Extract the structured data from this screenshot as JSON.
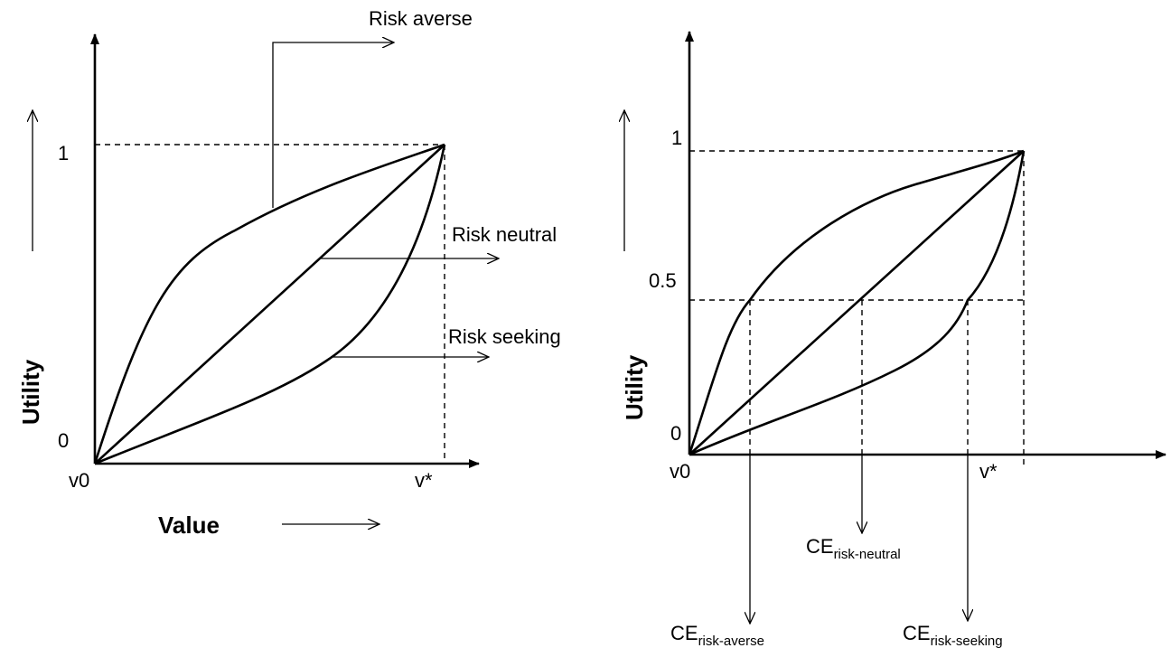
{
  "left_panel": {
    "y_axis_title": "Utility",
    "x_axis_title": "Value",
    "tick_y_top": "1",
    "tick_y_bottom": "0",
    "tick_x_origin": "v0",
    "tick_x_end": "v*",
    "curve_labels": {
      "risk_averse": "Risk averse",
      "risk_neutral": "Risk neutral",
      "risk_seeking": "Risk seeking"
    }
  },
  "right_panel": {
    "y_axis_title": "Utility",
    "tick_y_top": "1",
    "tick_y_mid": "0.5",
    "tick_y_bottom": "0",
    "tick_x_origin": "v0",
    "tick_x_end": "v*",
    "certainty_equivalents": {
      "ce_main": "CE",
      "risk_neutral_sub": "risk-neutral",
      "risk_averse_sub": "risk-averse",
      "risk_seeking_sub": "risk-seeking"
    }
  }
}
